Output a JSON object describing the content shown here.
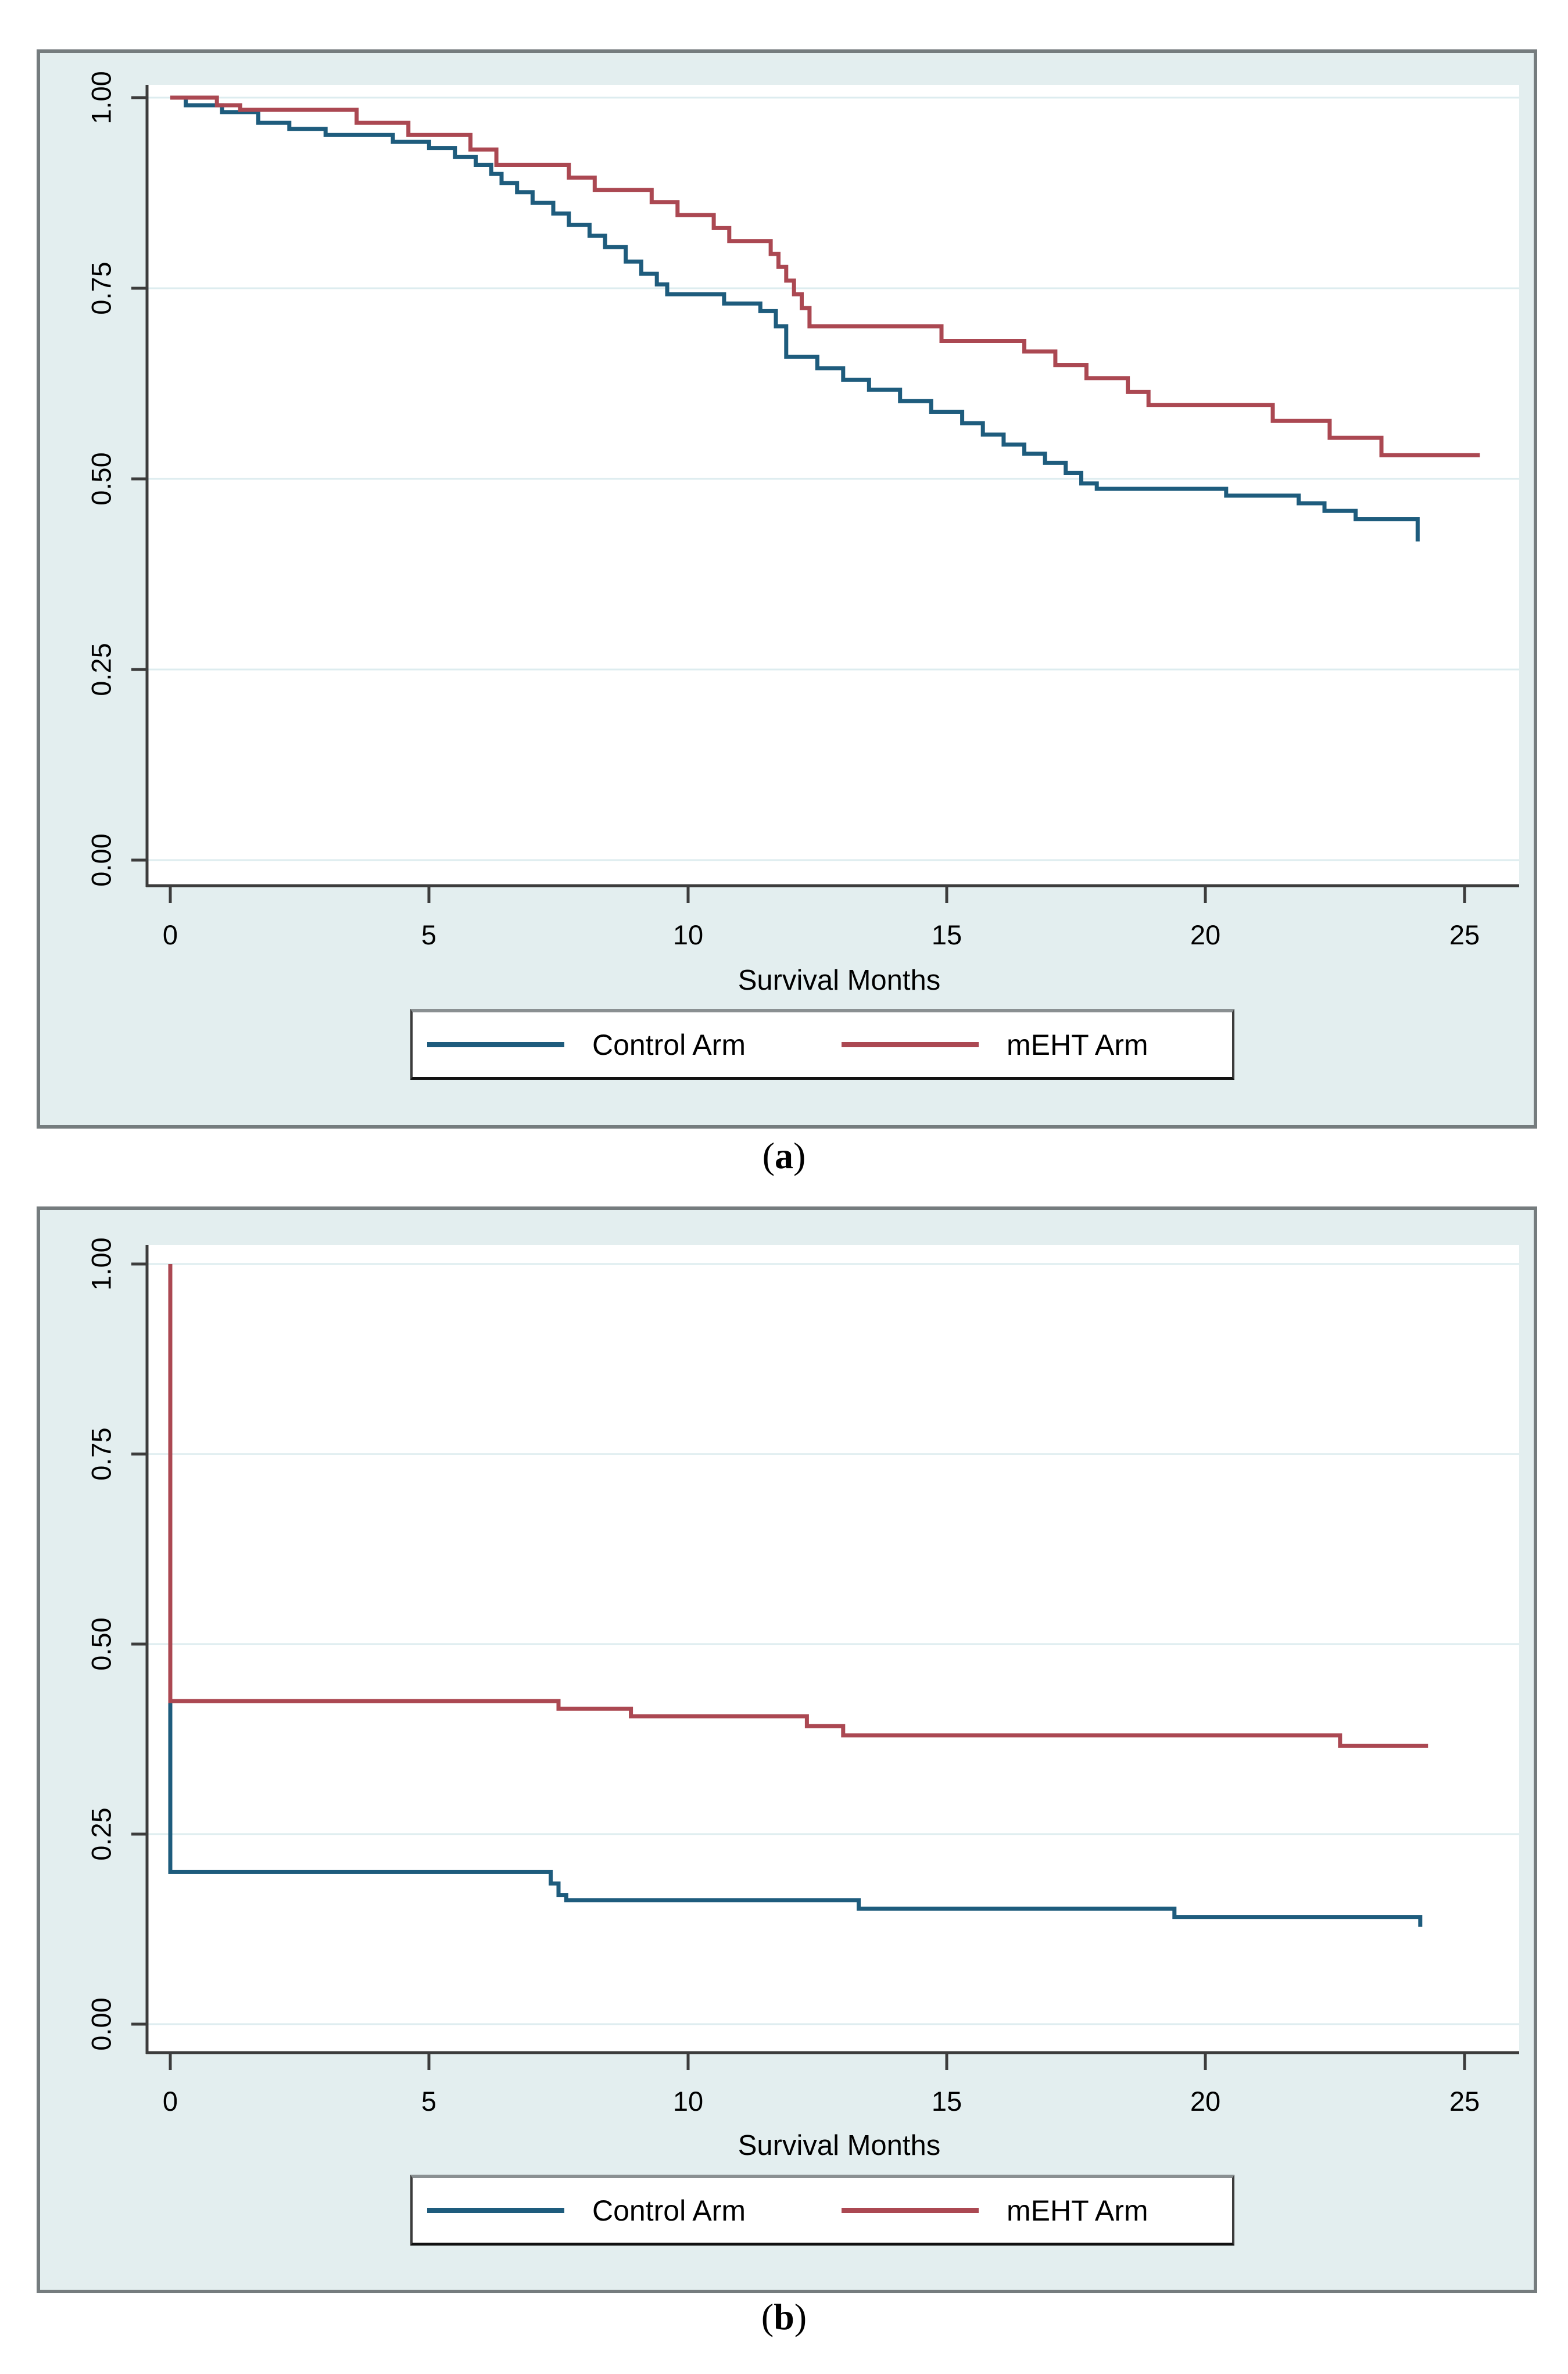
{
  "figure": {
    "type": "kaplan-meier-survival-figure",
    "panels": [
      "a",
      "b"
    ]
  },
  "charts": [
    {
      "id": "a",
      "caption_open": "(",
      "caption_letter": "a",
      "caption_close": ")",
      "xlabel": "Survival Months",
      "y_tick_labels": [
        "1.00",
        "0.75",
        "0.50",
        "0.25",
        "0.00"
      ],
      "x_tick_labels": [
        "0",
        "5",
        "10",
        "15",
        "20",
        "25"
      ],
      "legend": [
        {
          "label": "Control Arm",
          "color": "#1e5c7d"
        },
        {
          "label": "mEHT Arm",
          "color": "#ab4852"
        }
      ],
      "chart_data": {
        "type": "line",
        "subtype": "step-survival",
        "title": "",
        "xlabel": "Survival Months",
        "ylabel": "",
        "xlim": [
          0,
          25
        ],
        "ylim": [
          0.0,
          1.0
        ],
        "grid": "horizontal",
        "legend_position": "bottom",
        "series": [
          {
            "name": "Control Arm",
            "color": "#1e5c7d",
            "points": [
              [
                0,
                1.0
              ],
              [
                0.3,
                0.99
              ],
              [
                1.0,
                0.981
              ],
              [
                1.7,
                0.967
              ],
              [
                2.3,
                0.959
              ],
              [
                3.0,
                0.951
              ],
              [
                4.3,
                0.942
              ],
              [
                5.0,
                0.934
              ],
              [
                5.5,
                0.922
              ],
              [
                5.9,
                0.912
              ],
              [
                6.2,
                0.9
              ],
              [
                6.4,
                0.888
              ],
              [
                6.7,
                0.876
              ],
              [
                7.0,
                0.862
              ],
              [
                7.4,
                0.848
              ],
              [
                7.7,
                0.833
              ],
              [
                8.1,
                0.819
              ],
              [
                8.4,
                0.804
              ],
              [
                8.8,
                0.785
              ],
              [
                9.1,
                0.769
              ],
              [
                9.4,
                0.755
              ],
              [
                9.6,
                0.742
              ],
              [
                10.7,
                0.73
              ],
              [
                11.4,
                0.72
              ],
              [
                11.7,
                0.7
              ],
              [
                11.9,
                0.66
              ],
              [
                12.5,
                0.645
              ],
              [
                13.0,
                0.63
              ],
              [
                13.5,
                0.617
              ],
              [
                14.1,
                0.602
              ],
              [
                14.7,
                0.588
              ],
              [
                15.3,
                0.573
              ],
              [
                15.7,
                0.558
              ],
              [
                16.1,
                0.545
              ],
              [
                16.5,
                0.533
              ],
              [
                16.9,
                0.521
              ],
              [
                17.3,
                0.508
              ],
              [
                17.6,
                0.494
              ],
              [
                17.9,
                0.487
              ],
              [
                20.4,
                0.478
              ],
              [
                21.8,
                0.468
              ],
              [
                22.3,
                0.458
              ],
              [
                22.9,
                0.447
              ],
              [
                24.1,
                0.447
              ],
              [
                24.1,
                0.418
              ]
            ],
            "end_month": 24.1
          },
          {
            "name": "mEHT Arm",
            "color": "#ab4852",
            "points": [
              [
                0,
                1.0
              ],
              [
                0.9,
                0.99
              ],
              [
                1.35,
                0.984
              ],
              [
                3.6,
                0.967
              ],
              [
                4.6,
                0.951
              ],
              [
                5.8,
                0.932
              ],
              [
                6.3,
                0.912
              ],
              [
                7.7,
                0.895
              ],
              [
                8.2,
                0.879
              ],
              [
                9.3,
                0.863
              ],
              [
                9.8,
                0.846
              ],
              [
                10.5,
                0.829
              ],
              [
                10.8,
                0.812
              ],
              [
                11.6,
                0.795
              ],
              [
                11.75,
                0.778
              ],
              [
                11.9,
                0.76
              ],
              [
                12.05,
                0.742
              ],
              [
                12.2,
                0.724
              ],
              [
                12.35,
                0.7
              ],
              [
                14.9,
                0.681
              ],
              [
                16.5,
                0.667
              ],
              [
                17.1,
                0.649
              ],
              [
                17.7,
                0.632
              ],
              [
                18.5,
                0.614
              ],
              [
                18.9,
                0.597
              ],
              [
                21.3,
                0.576
              ],
              [
                22.4,
                0.554
              ],
              [
                23.4,
                0.531
              ]
            ],
            "end_month": 25.3
          }
        ]
      }
    },
    {
      "id": "b",
      "caption_open": "(",
      "caption_letter": "b",
      "caption_close": ")",
      "xlabel": "Survival Months",
      "y_tick_labels": [
        "1.00",
        "0.75",
        "0.50",
        "0.25",
        "0.00"
      ],
      "x_tick_labels": [
        "0",
        "5",
        "10",
        "15",
        "20",
        "25"
      ],
      "legend": [
        {
          "label": "Control Arm",
          "color": "#1e5c7d"
        },
        {
          "label": "mEHT Arm",
          "color": "#ab4852"
        }
      ],
      "chart_data": {
        "type": "line",
        "subtype": "step-survival",
        "title": "",
        "xlabel": "Survival Months",
        "ylabel": "",
        "xlim": [
          0,
          25
        ],
        "ylim": [
          0.0,
          1.0
        ],
        "grid": "horizontal",
        "legend_position": "bottom",
        "series": [
          {
            "name": "Control Arm",
            "color": "#1e5c7d",
            "points": [
              [
                0,
                1.0
              ],
              [
                0,
                0.2
              ],
              [
                7.35,
                0.185
              ],
              [
                7.5,
                0.17
              ],
              [
                7.65,
                0.163
              ],
              [
                13.3,
                0.152
              ],
              [
                19.4,
                0.141
              ],
              [
                24.15,
                0.141
              ],
              [
                24.15,
                0.128
              ]
            ],
            "end_month": 24.15
          },
          {
            "name": "mEHT Arm",
            "color": "#ab4852",
            "points": [
              [
                0,
                1.0
              ],
              [
                0,
                0.425
              ],
              [
                7.5,
                0.415
              ],
              [
                8.9,
                0.405
              ],
              [
                12.3,
                0.392
              ],
              [
                13.0,
                0.38
              ],
              [
                22.6,
                0.366
              ]
            ],
            "end_month": 24.3
          }
        ]
      }
    }
  ]
}
